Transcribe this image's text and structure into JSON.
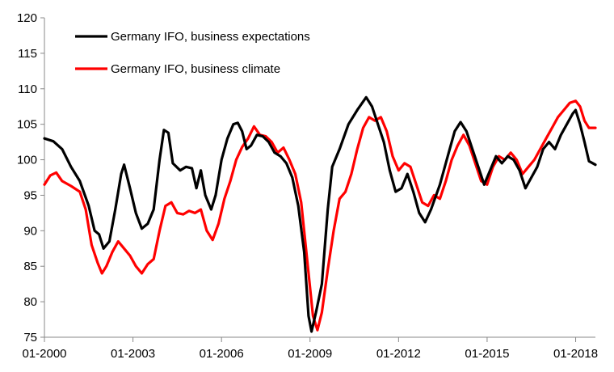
{
  "chart_data": {
    "type": "line",
    "title": "",
    "xlabel": "",
    "ylabel": "",
    "xlim": [
      2000.0,
      2018.67
    ],
    "ylim": [
      75,
      120
    ],
    "y_ticks": [
      75,
      80,
      85,
      90,
      95,
      100,
      105,
      110,
      115,
      120
    ],
    "x_ticks": [
      {
        "label": "01-2000",
        "value": 2000.0
      },
      {
        "label": "01-2003",
        "value": 2003.0
      },
      {
        "label": "01-2006",
        "value": 2006.0
      },
      {
        "label": "01-2009",
        "value": 2009.0
      },
      {
        "label": "01-2012",
        "value": 2012.0
      },
      {
        "label": "01-2015",
        "value": 2015.0
      },
      {
        "label": "01-2018",
        "value": 2018.0
      }
    ],
    "grid": false,
    "legend_position": "top-left",
    "series": [
      {
        "name": "Germany IFO, business expectations",
        "color": "#000000",
        "points": [
          [
            2000.0,
            103.0
          ],
          [
            2000.3,
            102.6
          ],
          [
            2000.6,
            101.5
          ],
          [
            2000.9,
            99.0
          ],
          [
            2001.2,
            97.0
          ],
          [
            2001.5,
            93.5
          ],
          [
            2001.7,
            90.0
          ],
          [
            2001.85,
            89.5
          ],
          [
            2002.0,
            87.5
          ],
          [
            2002.2,
            88.5
          ],
          [
            2002.4,
            93.0
          ],
          [
            2002.6,
            98.0
          ],
          [
            2002.7,
            99.3
          ],
          [
            2002.9,
            96.0
          ],
          [
            2003.1,
            92.5
          ],
          [
            2003.3,
            90.3
          ],
          [
            2003.5,
            91.0
          ],
          [
            2003.7,
            93.0
          ],
          [
            2003.9,
            100.0
          ],
          [
            2004.05,
            104.2
          ],
          [
            2004.2,
            103.8
          ],
          [
            2004.35,
            99.5
          ],
          [
            2004.6,
            98.5
          ],
          [
            2004.8,
            99.0
          ],
          [
            2005.0,
            98.8
          ],
          [
            2005.15,
            96.0
          ],
          [
            2005.3,
            98.5
          ],
          [
            2005.45,
            95.0
          ],
          [
            2005.65,
            93.0
          ],
          [
            2005.8,
            95.0
          ],
          [
            2006.0,
            100.0
          ],
          [
            2006.2,
            103.0
          ],
          [
            2006.4,
            105.0
          ],
          [
            2006.55,
            105.2
          ],
          [
            2006.7,
            104.0
          ],
          [
            2006.85,
            101.5
          ],
          [
            2007.0,
            102.0
          ],
          [
            2007.2,
            103.5
          ],
          [
            2007.4,
            103.3
          ],
          [
            2007.6,
            102.5
          ],
          [
            2007.8,
            101.0
          ],
          [
            2008.0,
            100.5
          ],
          [
            2008.2,
            99.5
          ],
          [
            2008.4,
            97.5
          ],
          [
            2008.6,
            93.5
          ],
          [
            2008.8,
            87.0
          ],
          [
            2008.95,
            78.0
          ],
          [
            2009.05,
            75.8
          ],
          [
            2009.2,
            78.5
          ],
          [
            2009.4,
            82.5
          ],
          [
            2009.6,
            93.0
          ],
          [
            2009.75,
            99.0
          ],
          [
            2010.0,
            101.5
          ],
          [
            2010.3,
            105.0
          ],
          [
            2010.6,
            107.0
          ],
          [
            2010.9,
            108.8
          ],
          [
            2011.1,
            107.5
          ],
          [
            2011.3,
            105.0
          ],
          [
            2011.5,
            102.5
          ],
          [
            2011.7,
            98.5
          ],
          [
            2011.9,
            95.5
          ],
          [
            2012.1,
            96.0
          ],
          [
            2012.3,
            98.0
          ],
          [
            2012.5,
            95.5
          ],
          [
            2012.7,
            92.5
          ],
          [
            2012.9,
            91.2
          ],
          [
            2013.1,
            93.0
          ],
          [
            2013.4,
            96.5
          ],
          [
            2013.7,
            101.0
          ],
          [
            2013.9,
            104.0
          ],
          [
            2014.1,
            105.3
          ],
          [
            2014.3,
            104.0
          ],
          [
            2014.5,
            101.5
          ],
          [
            2014.7,
            99.0
          ],
          [
            2014.9,
            96.5
          ],
          [
            2015.1,
            98.5
          ],
          [
            2015.3,
            100.5
          ],
          [
            2015.5,
            99.5
          ],
          [
            2015.7,
            100.5
          ],
          [
            2015.9,
            100.0
          ],
          [
            2016.1,
            98.5
          ],
          [
            2016.3,
            96.0
          ],
          [
            2016.5,
            97.5
          ],
          [
            2016.7,
            99.0
          ],
          [
            2016.9,
            101.5
          ],
          [
            2017.1,
            102.5
          ],
          [
            2017.3,
            101.5
          ],
          [
            2017.5,
            103.5
          ],
          [
            2017.7,
            105.0
          ],
          [
            2017.9,
            106.5
          ],
          [
            2018.0,
            107.0
          ],
          [
            2018.15,
            105.0
          ],
          [
            2018.3,
            102.5
          ],
          [
            2018.45,
            99.8
          ],
          [
            2018.67,
            99.3
          ]
        ]
      },
      {
        "name": "Germany IFO, business climate",
        "color": "#ff0000",
        "points": [
          [
            2000.0,
            96.5
          ],
          [
            2000.2,
            97.8
          ],
          [
            2000.4,
            98.2
          ],
          [
            2000.6,
            97.0
          ],
          [
            2000.9,
            96.3
          ],
          [
            2001.2,
            95.5
          ],
          [
            2001.4,
            93.0
          ],
          [
            2001.6,
            88.0
          ],
          [
            2001.8,
            85.5
          ],
          [
            2001.95,
            84.0
          ],
          [
            2002.1,
            85.0
          ],
          [
            2002.3,
            87.0
          ],
          [
            2002.5,
            88.5
          ],
          [
            2002.7,
            87.5
          ],
          [
            2002.9,
            86.5
          ],
          [
            2003.1,
            85.0
          ],
          [
            2003.3,
            84.0
          ],
          [
            2003.5,
            85.3
          ],
          [
            2003.7,
            86.0
          ],
          [
            2003.9,
            90.0
          ],
          [
            2004.1,
            93.5
          ],
          [
            2004.3,
            94.0
          ],
          [
            2004.5,
            92.5
          ],
          [
            2004.7,
            92.3
          ],
          [
            2004.9,
            92.8
          ],
          [
            2005.1,
            92.5
          ],
          [
            2005.3,
            93.0
          ],
          [
            2005.5,
            90.0
          ],
          [
            2005.7,
            88.7
          ],
          [
            2005.9,
            91.0
          ],
          [
            2006.1,
            94.5
          ],
          [
            2006.3,
            97.0
          ],
          [
            2006.5,
            100.0
          ],
          [
            2006.7,
            101.8
          ],
          [
            2006.9,
            103.0
          ],
          [
            2007.1,
            104.7
          ],
          [
            2007.3,
            103.5
          ],
          [
            2007.5,
            103.3
          ],
          [
            2007.7,
            102.5
          ],
          [
            2007.9,
            101.0
          ],
          [
            2008.1,
            101.7
          ],
          [
            2008.3,
            100.0
          ],
          [
            2008.5,
            98.0
          ],
          [
            2008.7,
            94.0
          ],
          [
            2008.9,
            86.0
          ],
          [
            2009.1,
            78.0
          ],
          [
            2009.25,
            76.0
          ],
          [
            2009.4,
            78.5
          ],
          [
            2009.6,
            84.5
          ],
          [
            2009.8,
            90.0
          ],
          [
            2010.0,
            94.5
          ],
          [
            2010.2,
            95.5
          ],
          [
            2010.4,
            98.0
          ],
          [
            2010.6,
            101.5
          ],
          [
            2010.8,
            104.5
          ],
          [
            2011.0,
            106.0
          ],
          [
            2011.2,
            105.5
          ],
          [
            2011.4,
            106.0
          ],
          [
            2011.6,
            104.0
          ],
          [
            2011.8,
            100.5
          ],
          [
            2012.0,
            98.5
          ],
          [
            2012.2,
            99.5
          ],
          [
            2012.4,
            99.0
          ],
          [
            2012.6,
            96.5
          ],
          [
            2012.8,
            94.0
          ],
          [
            2013.0,
            93.5
          ],
          [
            2013.2,
            95.0
          ],
          [
            2013.4,
            94.5
          ],
          [
            2013.6,
            97.0
          ],
          [
            2013.8,
            100.0
          ],
          [
            2014.0,
            102.0
          ],
          [
            2014.2,
            103.5
          ],
          [
            2014.4,
            102.0
          ],
          [
            2014.6,
            99.5
          ],
          [
            2014.8,
            97.0
          ],
          [
            2015.0,
            96.5
          ],
          [
            2015.2,
            99.0
          ],
          [
            2015.4,
            100.5
          ],
          [
            2015.6,
            100.0
          ],
          [
            2015.8,
            101.0
          ],
          [
            2016.0,
            100.0
          ],
          [
            2016.2,
            98.0
          ],
          [
            2016.4,
            99.0
          ],
          [
            2016.6,
            100.0
          ],
          [
            2016.8,
            101.5
          ],
          [
            2017.0,
            103.0
          ],
          [
            2017.2,
            104.5
          ],
          [
            2017.4,
            106.0
          ],
          [
            2017.6,
            107.0
          ],
          [
            2017.8,
            108.0
          ],
          [
            2018.0,
            108.3
          ],
          [
            2018.15,
            107.5
          ],
          [
            2018.3,
            105.5
          ],
          [
            2018.45,
            104.5
          ],
          [
            2018.67,
            104.5
          ]
        ]
      }
    ]
  }
}
